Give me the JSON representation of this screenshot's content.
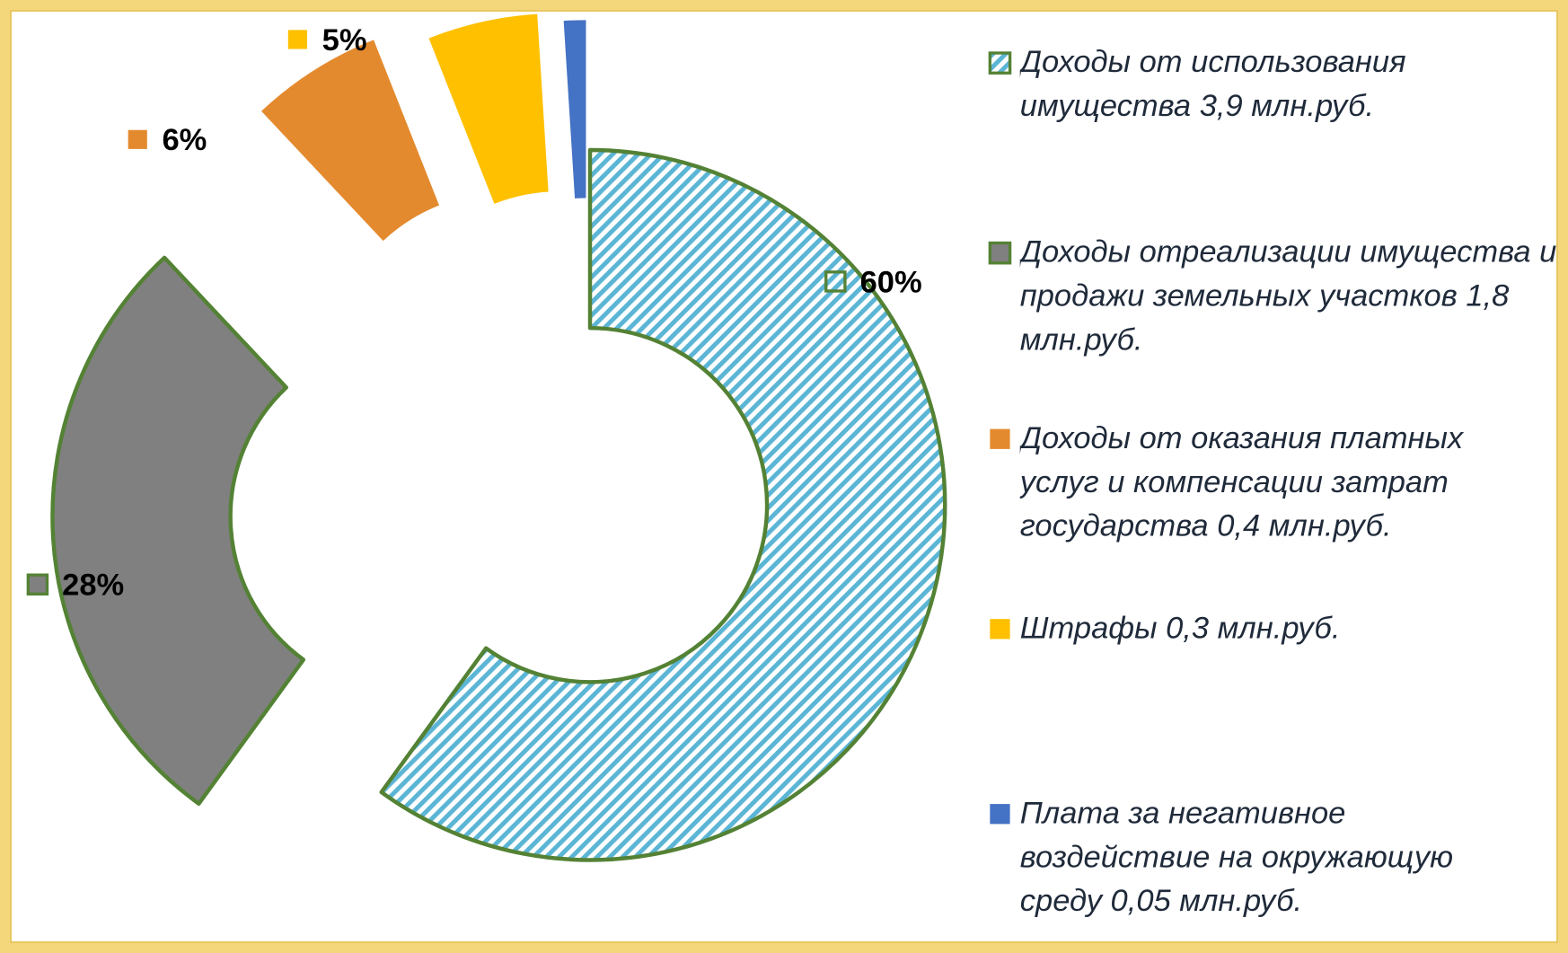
{
  "chart_data": {
    "type": "donut",
    "categories": [
      "Доходы от использования имущества 3,9 млн.руб.",
      "Доходы отреализации имущества и продажи земельных участков 1,8 млн.руб.",
      "Доходы от оказания платных услуг и компенсации затрат государства 0,4 млн.руб.",
      "Штрафы  0,3 млн.руб.",
      "Плата за негативное воздействие на окружающую среду  0,05 млн.руб."
    ],
    "values": [
      60,
      28,
      6,
      5,
      1
    ],
    "value_labels": [
      "60%",
      "28%",
      "6%",
      "5%",
      null
    ],
    "colors": [
      "#5bb5d5",
      "#808080",
      "#e48a2e",
      "#ffc000",
      "#4472c4"
    ],
    "legend": "right"
  }
}
